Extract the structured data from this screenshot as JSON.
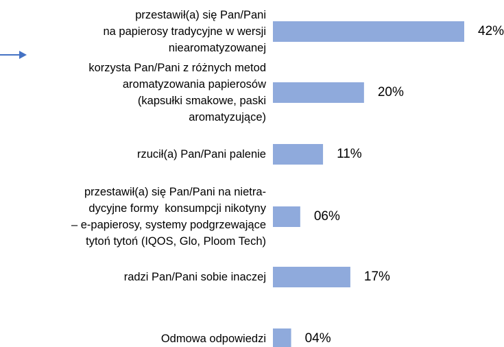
{
  "chart_data": {
    "type": "bar",
    "orientation": "horizontal",
    "categories": [
      "przestawił(a) się Pan/Pani\nna papierosy tradycyjne w wersji\nniearomatyzowanej",
      "korzysta Pan/Pani z różnych metod\naromatyzowania papierosów\n(kapsułki smakowe, paski\naromatyzujące)",
      "rzucił(a) Pan/Pani palenie",
      "przestawił(a) się Pan/Pani na nietra-\ndycyjne formy  konsumpcji nikotyny\n– e-papierosy, systemy podgrzewające\ntytoń tytoń (IQOS, Glo, Ploom Tech)",
      "radzi Pan/Pani sobie inaczej",
      "Odmowa odpowiedzi"
    ],
    "values": [
      42,
      20,
      11,
      6,
      17,
      4
    ],
    "value_labels": [
      "42%",
      "20%",
      "11%",
      "06%",
      "17%",
      "04%"
    ],
    "color": "#8faadc"
  }
}
